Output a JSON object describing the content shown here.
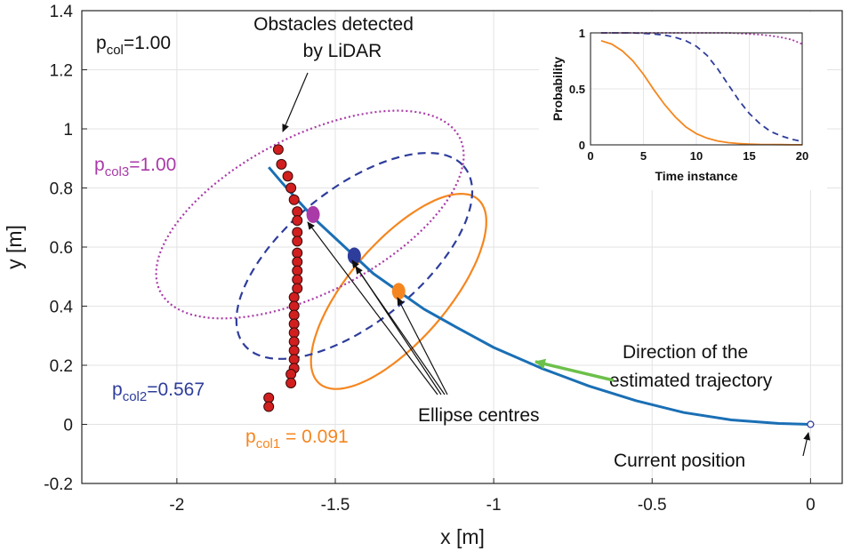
{
  "chart_data": [
    {
      "type": "scatter",
      "xlabel": "x [m]",
      "ylabel": "y [m]",
      "xlim": [
        -2.3,
        0.1
      ],
      "ylim": [
        -0.2,
        1.4
      ],
      "xticks": [
        -2,
        -1.5,
        -1,
        -0.5,
        0
      ],
      "xtick_labels": [
        "-2",
        "-1.5",
        "-1",
        "-0.5",
        "0"
      ],
      "yticks": [
        -0.2,
        0,
        0.2,
        0.4,
        0.6,
        0.8,
        1,
        1.2,
        1.4
      ],
      "ytick_labels": [
        "-0.2",
        "0",
        "0.2",
        "0.4",
        "0.6",
        "0.8",
        "1",
        "1.2",
        "1.4"
      ],
      "grid": true,
      "colors": {
        "trajectory": "#1a6fb5",
        "col1": "#f5861f",
        "col2": "#2e3d9c",
        "col3": "#a93aa8",
        "obstacle": "#d11f1f",
        "arrow": "#6cc04a"
      },
      "trajectory": {
        "x": [
          -1.71,
          -1.67,
          -1.62,
          -1.56,
          -1.5,
          -1.44,
          -1.38,
          -1.3,
          -1.22,
          -1.12,
          -1.0,
          -0.85,
          -0.7,
          -0.55,
          -0.4,
          -0.25,
          -0.1,
          0.0
        ],
        "y": [
          0.87,
          0.82,
          0.76,
          0.69,
          0.63,
          0.57,
          0.51,
          0.45,
          0.39,
          0.33,
          0.26,
          0.19,
          0.13,
          0.08,
          0.04,
          0.015,
          0.003,
          0.0
        ]
      },
      "obstacles": {
        "x": [
          -1.68,
          -1.67,
          -1.65,
          -1.64,
          -1.63,
          -1.62,
          -1.62,
          -1.62,
          -1.62,
          -1.62,
          -1.62,
          -1.62,
          -1.62,
          -1.62,
          -1.63,
          -1.63,
          -1.63,
          -1.63,
          -1.63,
          -1.63,
          -1.63,
          -1.63,
          -1.63,
          -1.64,
          -1.64,
          -1.71,
          -1.71
        ],
        "y": [
          0.93,
          0.88,
          0.84,
          0.8,
          0.76,
          0.72,
          0.69,
          0.65,
          0.62,
          0.58,
          0.55,
          0.52,
          0.49,
          0.46,
          0.43,
          0.4,
          0.37,
          0.34,
          0.31,
          0.28,
          0.25,
          0.22,
          0.19,
          0.17,
          0.14,
          0.09,
          0.06
        ]
      },
      "ellipses": [
        {
          "name": "col1",
          "cx": -1.3,
          "cy": 0.45,
          "rx": 0.4,
          "ry": 0.16,
          "angle_deg": 52,
          "style": "solid"
        },
        {
          "name": "col2",
          "cx": -1.44,
          "cy": 0.57,
          "rx": 0.46,
          "ry": 0.22,
          "angle_deg": 42,
          "style": "dashed"
        },
        {
          "name": "col3",
          "cx": -1.58,
          "cy": 0.71,
          "rx": 0.54,
          "ry": 0.26,
          "angle_deg": 30,
          "style": "dotted"
        }
      ],
      "centres": [
        {
          "name": "col1",
          "x": -1.3,
          "y": 0.45
        },
        {
          "name": "col2",
          "x": -1.44,
          "y": 0.57
        },
        {
          "name": "col3",
          "x": -1.57,
          "y": 0.71
        }
      ],
      "current_position": {
        "x": 0.0,
        "y": 0.0
      }
    },
    {
      "type": "line",
      "xlabel": "Time instance",
      "ylabel": "Probability",
      "xlim": [
        0,
        20
      ],
      "ylim": [
        0,
        1
      ],
      "xticks": [
        0,
        5,
        10,
        15,
        20
      ],
      "xtick_labels": [
        "0",
        "5",
        "10",
        "15",
        "20"
      ],
      "yticks": [
        0,
        0.5,
        1
      ],
      "ytick_labels": [
        "0",
        "0.5",
        "1"
      ],
      "x": [
        1,
        2,
        3,
        4,
        5,
        6,
        7,
        8,
        9,
        10,
        11,
        12,
        13,
        14,
        15,
        16,
        17,
        18,
        19,
        20
      ],
      "series": [
        {
          "values": [
            0.93,
            0.9,
            0.84,
            0.75,
            0.63,
            0.49,
            0.36,
            0.25,
            0.16,
            0.1,
            0.06,
            0.035,
            0.02,
            0.012,
            0.007,
            0.004,
            0.003,
            0.002,
            0.001,
            0.001
          ],
          "color": "#f5861f",
          "style": "solid"
        },
        {
          "values": [
            1.0,
            1.0,
            1.0,
            1.0,
            0.995,
            0.99,
            0.98,
            0.96,
            0.93,
            0.88,
            0.8,
            0.68,
            0.54,
            0.4,
            0.28,
            0.19,
            0.12,
            0.08,
            0.05,
            0.03
          ],
          "color": "#2e3d9c",
          "style": "dashed"
        },
        {
          "values": [
            1.0,
            1.0,
            1.0,
            1.0,
            1.0,
            1.0,
            1.0,
            1.0,
            1.0,
            1.0,
            1.0,
            1.0,
            1.0,
            0.995,
            0.99,
            0.985,
            0.975,
            0.96,
            0.94,
            0.9
          ],
          "color": "#a93aa8",
          "style": "dotted"
        }
      ]
    }
  ],
  "annotations": {
    "pcol": {
      "main": "p",
      "sub": "col",
      "rest": "=1.00"
    },
    "pcol3": {
      "main": "p",
      "sub": "col3",
      "rest": "=1.00"
    },
    "pcol2": {
      "main": "p",
      "sub": "col2",
      "rest": "=0.567"
    },
    "pcol1": {
      "main": "p",
      "sub": "col1",
      "rest": " = 0.091"
    },
    "obstacles_line1": "Obstacles detected",
    "obstacles_line2": "by LiDAR",
    "ellipse_centres": "Ellipse centres",
    "direction_line1": "Direction of the",
    "direction_line2": "estimated trajectory",
    "current_position": "Current position"
  }
}
